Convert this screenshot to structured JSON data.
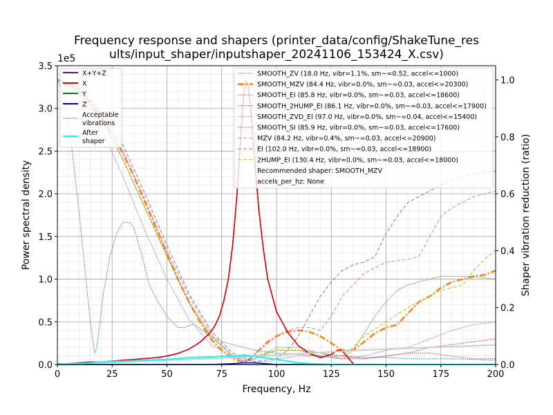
{
  "chart_data": {
    "type": "line",
    "title_lines": [
      "Frequency response and shapers (printer_data/config/ShakeTune_res",
      "ults/input_shaper/inputshaper_20241106_153424_X.csv)"
    ],
    "xlabel": "Frequency, Hz",
    "ylabel": "Power spectral density",
    "y2label": "Shaper vibration reduction (ratio)",
    "y_exponent_label": "1e5",
    "xlim": [
      0,
      200
    ],
    "ylim": [
      0,
      3.5
    ],
    "y2lim": [
      0,
      1.05
    ],
    "x_ticks": [
      0,
      25,
      50,
      75,
      100,
      125,
      150,
      175,
      200
    ],
    "x_tick_labels": [
      "0",
      "25",
      "50",
      "75",
      "100",
      "125",
      "150",
      "175",
      "200"
    ],
    "y_ticks": [
      0,
      0.5,
      1.0,
      1.5,
      2.0,
      2.5,
      3.0,
      3.5
    ],
    "y_tick_labels": [
      "0.0",
      "0.5",
      "1.0",
      "1.5",
      "2.0",
      "2.5",
      "3.0",
      "3.5"
    ],
    "y2_ticks": [
      0,
      0.2,
      0.4,
      0.6,
      0.8,
      1.0
    ],
    "y2_tick_labels": [
      "0.0",
      "0.2",
      "0.4",
      "0.6",
      "0.8",
      "1.0"
    ],
    "grid": true,
    "minor_grid": true,
    "legend_left_placement": "top-left",
    "legend_right_placement": "top-right",
    "psd_series": [
      {
        "name": "X+Y+Z",
        "color": "#800080",
        "width": 1.5,
        "dash": "",
        "x": [
          0,
          5,
          10,
          15,
          20,
          25,
          30,
          35,
          40,
          45,
          50,
          55,
          60,
          65,
          70,
          72,
          74,
          76,
          78,
          80,
          82,
          84,
          85,
          86,
          87,
          88,
          89,
          90,
          92,
          94,
          96,
          100,
          105,
          110,
          115,
          120,
          125,
          128,
          130,
          132,
          134,
          135
        ],
        "y": [
          0.01,
          0.01,
          0.02,
          0.03,
          0.03,
          0.04,
          0.05,
          0.06,
          0.07,
          0.08,
          0.1,
          0.13,
          0.18,
          0.26,
          0.38,
          0.46,
          0.57,
          0.75,
          1.0,
          1.4,
          2.0,
          2.8,
          3.15,
          3.32,
          3.28,
          3.05,
          2.75,
          2.4,
          1.8,
          1.35,
          1.0,
          0.62,
          0.38,
          0.22,
          0.13,
          0.08,
          0.12,
          0.17,
          0.16,
          0.1,
          0.04,
          0.01
        ]
      },
      {
        "name": "X",
        "color": "#e00000",
        "width": 1.5,
        "dash": "",
        "x": [
          0,
          5,
          10,
          15,
          20,
          25,
          30,
          35,
          40,
          45,
          50,
          55,
          60,
          65,
          70,
          72,
          74,
          76,
          78,
          80,
          82,
          84,
          85,
          86,
          87,
          88,
          89,
          90,
          92,
          94,
          96,
          100,
          105,
          110,
          115,
          120,
          125,
          128,
          130,
          132,
          134,
          135
        ],
        "y": [
          0.01,
          0.01,
          0.02,
          0.03,
          0.03,
          0.04,
          0.05,
          0.06,
          0.07,
          0.08,
          0.1,
          0.13,
          0.18,
          0.26,
          0.38,
          0.46,
          0.57,
          0.75,
          1.0,
          1.4,
          2.0,
          2.8,
          3.15,
          3.32,
          3.28,
          3.05,
          2.75,
          2.4,
          1.8,
          1.35,
          1.0,
          0.62,
          0.38,
          0.22,
          0.13,
          0.08,
          0.12,
          0.17,
          0.16,
          0.1,
          0.04,
          0.01
        ]
      },
      {
        "name": "Y",
        "color": "#008000",
        "width": 1.5,
        "dash": "",
        "x": [
          0,
          50,
          100,
          150,
          200
        ],
        "y": [
          0.0,
          0.0,
          0.0,
          0.0,
          0.0
        ]
      },
      {
        "name": "Z",
        "color": "#0000c8",
        "width": 1.5,
        "dash": "",
        "x": [
          0,
          70,
          80,
          85,
          90,
          95,
          100,
          200
        ],
        "y": [
          0.0,
          0.0,
          0.01,
          0.02,
          0.02,
          0.01,
          0.0,
          0.0
        ]
      },
      {
        "name": "Acceptable vibrations",
        "color": "#cccccc",
        "width": 2,
        "dash": "",
        "x": [
          0,
          20,
          40,
          60,
          80,
          100,
          120,
          140,
          160,
          180,
          200
        ],
        "y": [
          0.005,
          0.02,
          0.04,
          0.06,
          0.08,
          0.11,
          0.14,
          0.17,
          0.19,
          0.21,
          0.23
        ]
      },
      {
        "name": "After shaper",
        "color": "#00ffff",
        "width": 2,
        "dash": "",
        "x": [
          0,
          10,
          20,
          30,
          40,
          50,
          60,
          70,
          80,
          85,
          90,
          95,
          100,
          105,
          110,
          115,
          120,
          125,
          130,
          135,
          140,
          150,
          160,
          170,
          180,
          190,
          200
        ],
        "y": [
          0.005,
          0.01,
          0.03,
          0.04,
          0.05,
          0.06,
          0.08,
          0.09,
          0.1,
          0.11,
          0.1,
          0.08,
          0.06,
          0.04,
          0.02,
          0.01,
          0.005,
          0.0,
          0.0,
          0.0,
          0.0,
          0.0,
          0.0,
          0.0,
          0.0,
          0.0,
          0.0
        ]
      }
    ],
    "shaper_series": [
      {
        "name": "SMOOTH_ZV (18.0 Hz, vibr=1.1%, sm~=0.52, accel<=1000)",
        "color": "#1f77b4",
        "width": 1,
        "dash": "1.5,1.5",
        "x": [
          0,
          3,
          6,
          9,
          12,
          15,
          17,
          18,
          19,
          21,
          24,
          27,
          30,
          33,
          35,
          38,
          42,
          46,
          50,
          55,
          58,
          61,
          63,
          66,
          70,
          75,
          80,
          85,
          90,
          100,
          110,
          120,
          130,
          140,
          150,
          160,
          170,
          180,
          190,
          200
        ],
        "y": [
          1.0,
          0.94,
          0.8,
          0.6,
          0.38,
          0.15,
          0.04,
          0.06,
          0.12,
          0.25,
          0.38,
          0.46,
          0.5,
          0.5,
          0.48,
          0.4,
          0.28,
          0.22,
          0.17,
          0.13,
          0.13,
          0.14,
          0.14,
          0.12,
          0.1,
          0.08,
          0.07,
          0.06,
          0.05,
          0.04,
          0.035,
          0.03,
          0.03,
          0.025,
          0.025,
          0.02,
          0.02,
          0.02,
          0.018,
          0.015
        ]
      },
      {
        "name": "SMOOTH_MZV (84.4 Hz, vibr=0.0%, sm~=0.03, accel<=20300)",
        "color": "#ff7f0e",
        "width": 2.5,
        "dash": "9,3,2,3",
        "x": [
          0,
          5,
          10,
          15,
          20,
          25,
          30,
          35,
          40,
          45,
          50,
          55,
          60,
          65,
          70,
          75,
          80,
          84,
          88,
          92,
          96,
          100,
          105,
          110,
          115,
          120,
          125,
          130,
          135,
          140,
          145,
          150,
          155,
          160,
          165,
          170,
          175,
          180,
          185,
          190,
          195,
          200
        ],
        "y": [
          1.0,
          0.99,
          0.96,
          0.92,
          0.87,
          0.81,
          0.74,
          0.66,
          0.57,
          0.48,
          0.39,
          0.3,
          0.22,
          0.15,
          0.09,
          0.05,
          0.02,
          0.01,
          0.02,
          0.05,
          0.08,
          0.1,
          0.115,
          0.12,
          0.115,
          0.1,
          0.075,
          0.05,
          0.05,
          0.08,
          0.11,
          0.13,
          0.14,
          0.18,
          0.22,
          0.24,
          0.27,
          0.29,
          0.3,
          0.31,
          0.315,
          0.33
        ]
      },
      {
        "name": "SMOOTH_EI (85.8 Hz, vibr=0.0%, sm~=0.03, accel<=18600)",
        "color": "#2ca02c",
        "width": 1,
        "dash": "1.5,1.5",
        "x": [
          0,
          10,
          20,
          30,
          40,
          50,
          60,
          70,
          80,
          86,
          90,
          100,
          110,
          120,
          125,
          130,
          135,
          140,
          145,
          150,
          155,
          160,
          165,
          170,
          175,
          180,
          185,
          190,
          195,
          200
        ],
        "y": [
          1.0,
          0.96,
          0.86,
          0.72,
          0.55,
          0.38,
          0.22,
          0.1,
          0.03,
          0.01,
          0.02,
          0.06,
          0.06,
          0.04,
          0.03,
          0.02,
          0.05,
          0.11,
          0.17,
          0.22,
          0.26,
          0.28,
          0.29,
          0.3,
          0.31,
          0.31,
          0.31,
          0.31,
          0.305,
          0.3
        ]
      },
      {
        "name": "SMOOTH_2HUMP_EI (86.1 Hz, vibr=0.0%, sm~=0.03, accel<=17900)",
        "color": "#d62728",
        "width": 1,
        "dash": "1.5,1.5",
        "x": [
          0,
          10,
          20,
          30,
          40,
          50,
          60,
          70,
          80,
          86,
          90,
          100,
          110,
          120,
          130,
          140,
          150,
          160,
          170,
          180,
          190,
          200
        ],
        "y": [
          1.0,
          0.96,
          0.86,
          0.72,
          0.55,
          0.38,
          0.22,
          0.1,
          0.03,
          0.01,
          0.02,
          0.05,
          0.05,
          0.04,
          0.03,
          0.02,
          0.03,
          0.04,
          0.06,
          0.07,
          0.08,
          0.09
        ]
      },
      {
        "name": "SMOOTH_ZVD_EI (97.0 Hz, vibr=0.0%, sm~=0.04, accel<=15400)",
        "color": "#9467bd",
        "width": 1,
        "dash": "1.5,1.5",
        "x": [
          0,
          10,
          20,
          30,
          40,
          50,
          60,
          70,
          80,
          90,
          97,
          100,
          110,
          120,
          130,
          140,
          150,
          160,
          170,
          180,
          190,
          200
        ],
        "y": [
          1.0,
          0.95,
          0.83,
          0.66,
          0.47,
          0.3,
          0.16,
          0.07,
          0.03,
          0.01,
          0.01,
          0.02,
          0.03,
          0.03,
          0.02,
          0.03,
          0.05,
          0.06,
          0.09,
          0.12,
          0.14,
          0.15
        ]
      },
      {
        "name": "SMOOTH_SI (85.9 Hz, vibr=0.0%, sm~=0.03, accel<=17600)",
        "color": "#8c564b",
        "width": 1,
        "dash": "1.5,1.5",
        "x": [
          0,
          10,
          20,
          30,
          40,
          50,
          60,
          70,
          80,
          86,
          90,
          100,
          110,
          120,
          130,
          140,
          150,
          160,
          170,
          180,
          190,
          200
        ],
        "y": [
          1.0,
          0.96,
          0.86,
          0.72,
          0.55,
          0.38,
          0.22,
          0.1,
          0.03,
          0.01,
          0.02,
          0.05,
          0.05,
          0.03,
          0.02,
          0.02,
          0.03,
          0.04,
          0.04,
          0.03,
          0.02,
          0.02
        ]
      },
      {
        "name": "MZV (84.2 Hz, vibr=0.4%, sm~=0.03, accel<=20900)",
        "color": "#e377c2",
        "width": 1,
        "dash": "5,3",
        "x": [
          0,
          10,
          20,
          30,
          40,
          50,
          60,
          70,
          80,
          84,
          88,
          92,
          100,
          105,
          110,
          115,
          120,
          125,
          130,
          140,
          150,
          160,
          165,
          170,
          175,
          180,
          190,
          200
        ],
        "y": [
          1.0,
          0.97,
          0.88,
          0.75,
          0.58,
          0.4,
          0.24,
          0.11,
          0.03,
          0.01,
          0.02,
          0.05,
          0.1,
          0.12,
          0.13,
          0.13,
          0.12,
          0.17,
          0.24,
          0.32,
          0.36,
          0.37,
          0.38,
          0.45,
          0.52,
          0.55,
          0.59,
          0.61
        ]
      },
      {
        "name": "EI (102.0 Hz, vibr=0.0%, sm~=0.03, accel<=18900)",
        "color": "#7f7f7f",
        "width": 1,
        "dash": "5,3",
        "x": [
          0,
          10,
          20,
          30,
          40,
          50,
          60,
          70,
          80,
          90,
          100,
          105,
          110,
          115,
          120,
          125,
          130,
          135,
          140,
          145,
          150,
          155,
          160,
          165,
          170,
          175,
          180,
          190,
          200
        ],
        "y": [
          1.0,
          0.97,
          0.89,
          0.77,
          0.6,
          0.42,
          0.25,
          0.12,
          0.04,
          0.01,
          0.02,
          0.05,
          0.1,
          0.17,
          0.24,
          0.29,
          0.33,
          0.35,
          0.36,
          0.38,
          0.46,
          0.52,
          0.57,
          0.59,
          0.61,
          0.63,
          0.65,
          0.67,
          0.68
        ]
      },
      {
        "name": "2HUMP_EI (130.4 Hz, vibr=0.0%, sm~=0.03, accel<=18000)",
        "color": "#bcbd22",
        "width": 1,
        "dash": "5,3",
        "x": [
          0,
          10,
          20,
          30,
          40,
          50,
          60,
          70,
          80,
          90,
          100,
          110,
          120,
          130,
          135,
          140,
          150,
          160,
          165,
          170,
          175,
          180,
          185,
          190,
          195,
          200
        ],
        "y": [
          1.0,
          0.96,
          0.86,
          0.72,
          0.55,
          0.38,
          0.22,
          0.1,
          0.03,
          0.03,
          0.05,
          0.05,
          0.04,
          0.03,
          0.06,
          0.1,
          0.15,
          0.2,
          0.22,
          0.24,
          0.26,
          0.27,
          0.28,
          0.33,
          0.37,
          0.4
        ]
      }
    ],
    "legend_left_entries": [
      {
        "label": "X+Y+Z",
        "color": "#800080"
      },
      {
        "label": "X",
        "color": "#e00000"
      },
      {
        "label": "Y",
        "color": "#008000"
      },
      {
        "label": "Z",
        "color": "#0000c8"
      },
      {
        "label": "Acceptable\nvibrations",
        "color": "#cccccc"
      },
      {
        "label": "After\nshaper",
        "color": "#00ffff"
      }
    ],
    "legend_right_extra": [
      "Recommended shaper: SMOOTH_MZV",
      "accels_per_hz: None"
    ]
  }
}
